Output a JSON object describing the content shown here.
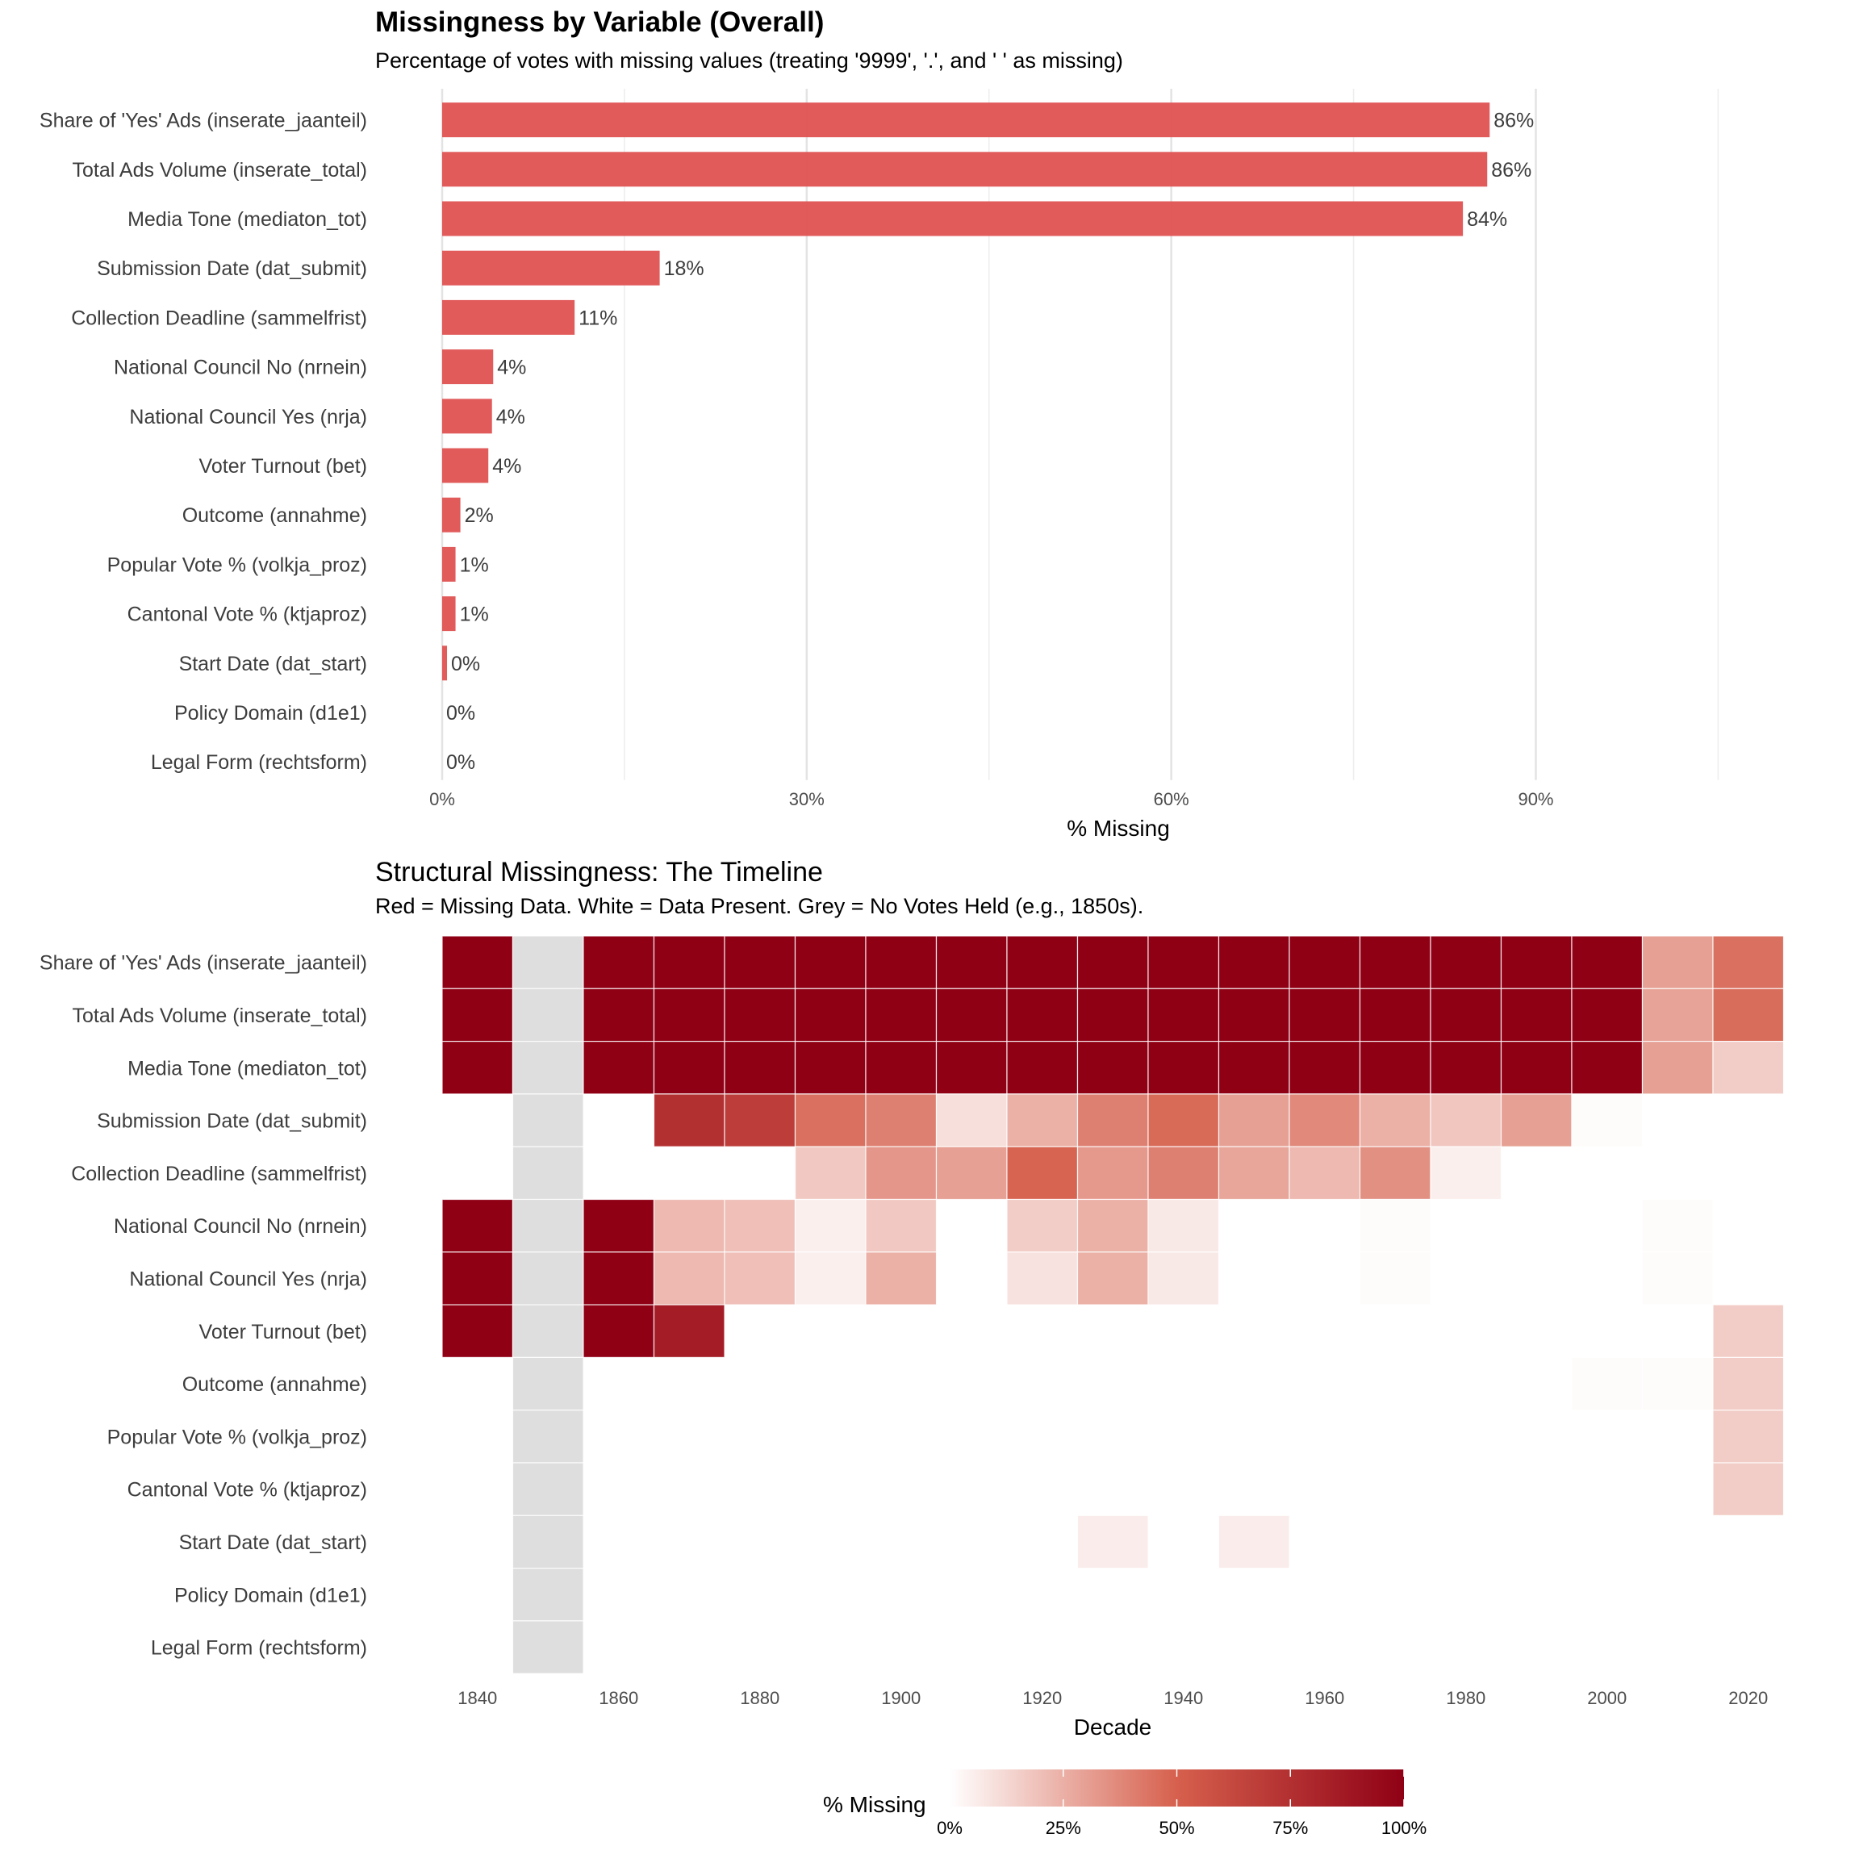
{
  "chart_data": [
    {
      "type": "bar",
      "orientation": "horizontal",
      "title": "Missingness by Variable (Overall)",
      "subtitle": "Percentage of votes with missing values (treating '9999', '.', and ' ' as missing)",
      "xlabel": "% Missing",
      "ylabel": "",
      "xlim": [
        0,
        115
      ],
      "x_ticks": [
        0,
        30,
        60,
        90
      ],
      "x_tick_labels": [
        "0%",
        "30%",
        "60%",
        "90%"
      ],
      "grid": true,
      "bar_color": "#e05252",
      "categories": [
        "Share of 'Yes' Ads (inserate_jaanteil)",
        "Total Ads Volume (inserate_total)",
        "Media Tone (mediaton_tot)",
        "Submission Date (dat_submit)",
        "Collection Deadline (sammelfrist)",
        "National Council No (nrnein)",
        "National Council Yes (nrja)",
        "Voter Turnout (bet)",
        "Outcome (annahme)",
        "Popular Vote % (volkja_proz)",
        "Cantonal Vote % (ktjaproz)",
        "Start Date (dat_start)",
        "Policy Domain (d1e1)",
        "Legal Form (rechtsform)"
      ],
      "values": [
        86.2,
        86.0,
        84.0,
        17.9,
        10.9,
        4.2,
        4.1,
        3.8,
        1.5,
        1.1,
        1.1,
        0.4,
        0,
        0
      ],
      "data_labels": [
        "86%",
        "86%",
        "84%",
        "18%",
        "11%",
        "4%",
        "4%",
        "4%",
        "2%",
        "1%",
        "1%",
        "0%",
        "0%",
        "0%"
      ]
    },
    {
      "type": "heatmap",
      "title": "Structural Missingness: The Timeline",
      "subtitle": "Red = Missing Data. White = Data Present. Grey = No Votes Held (e.g., 1850s).",
      "xlabel": "Decade",
      "ylabel": "",
      "x": [
        1840,
        1850,
        1860,
        1870,
        1880,
        1890,
        1900,
        1910,
        1920,
        1930,
        1940,
        1950,
        1960,
        1970,
        1980,
        1990,
        2000,
        2010,
        2020
      ],
      "x_tick_labels": [
        "1840",
        "1860",
        "1880",
        "1900",
        "1920",
        "1940",
        "1960",
        "1980",
        "2000",
        "2020"
      ],
      "y": [
        "Share of 'Yes' Ads (inserate_jaanteil)",
        "Total Ads Volume (inserate_total)",
        "Media Tone (mediaton_tot)",
        "Submission Date (dat_submit)",
        "Collection Deadline (sammelfrist)",
        "National Council No (nrnein)",
        "National Council Yes (nrja)",
        "Voter Turnout (bet)",
        "Outcome (annahme)",
        "Popular Vote % (volkja_proz)",
        "Cantonal Vote % (ktjaproz)",
        "Start Date (dat_start)",
        "Policy Domain (d1e1)",
        "Legal Form (rechtsform)"
      ],
      "no_votes_decades": [
        1850
      ],
      "no_votes_color": "#dedede",
      "values_percent_missing": [
        [
          100,
          null,
          100,
          100,
          100,
          100,
          100,
          100,
          100,
          100,
          100,
          100,
          100,
          100,
          100,
          100,
          100,
          30,
          45
        ],
        [
          100,
          null,
          100,
          100,
          100,
          100,
          100,
          100,
          100,
          100,
          100,
          100,
          100,
          100,
          100,
          100,
          100,
          29,
          46
        ],
        [
          100,
          null,
          100,
          100,
          100,
          100,
          100,
          100,
          100,
          100,
          100,
          100,
          100,
          100,
          100,
          100,
          100,
          30,
          16
        ],
        [
          0,
          null,
          0,
          75,
          68,
          45,
          40,
          10,
          25,
          40,
          47,
          30,
          37,
          25,
          18,
          30,
          1,
          0,
          0
        ],
        [
          0,
          null,
          0,
          0,
          0,
          17,
          33,
          30,
          49,
          32,
          40,
          28,
          22,
          35,
          5,
          0,
          0,
          0,
          0
        ],
        [
          100,
          null,
          100,
          22,
          20,
          5,
          17,
          0,
          16,
          25,
          7,
          0,
          0,
          1,
          0,
          0,
          0,
          1,
          0
        ],
        [
          100,
          null,
          100,
          22,
          20,
          5,
          25,
          0,
          9,
          25,
          7,
          0,
          0,
          1,
          0,
          0,
          0,
          1,
          0
        ],
        [
          100,
          null,
          100,
          85,
          0,
          0,
          0,
          0,
          0,
          0,
          0,
          0,
          0,
          0,
          0,
          0,
          0,
          0,
          16
        ],
        [
          0,
          null,
          0,
          0,
          0,
          0,
          0,
          0,
          0,
          0,
          0,
          0,
          0,
          0,
          0,
          0,
          1,
          1,
          16
        ],
        [
          0,
          null,
          0,
          0,
          0,
          0,
          0,
          0,
          0,
          0,
          0,
          0,
          0,
          0,
          0,
          0,
          0,
          0,
          16
        ],
        [
          0,
          null,
          0,
          0,
          0,
          0,
          0,
          0,
          0,
          0,
          0,
          0,
          0,
          0,
          0,
          0,
          0,
          0,
          16
        ],
        [
          0,
          null,
          0,
          0,
          0,
          0,
          0,
          0,
          0,
          6,
          0,
          6,
          0,
          0,
          0,
          0,
          0,
          0,
          0
        ],
        [
          0,
          null,
          0,
          0,
          0,
          0,
          0,
          0,
          0,
          0,
          0,
          0,
          0,
          0,
          0,
          0,
          0,
          0,
          0
        ],
        [
          0,
          null,
          0,
          0,
          0,
          0,
          0,
          0,
          0,
          0,
          0,
          0,
          0,
          0,
          0,
          0,
          0,
          0,
          0
        ]
      ],
      "color_scale": {
        "low": "#ffffff",
        "mid": "#d6604d",
        "high": "#8f0015",
        "range": [
          0,
          100
        ]
      },
      "legend": {
        "title": "% Missing",
        "position": "bottom",
        "ticks": [
          0,
          25,
          50,
          75,
          100
        ],
        "tick_labels": [
          "0%",
          "25%",
          "50%",
          "75%",
          "100%"
        ]
      }
    }
  ]
}
